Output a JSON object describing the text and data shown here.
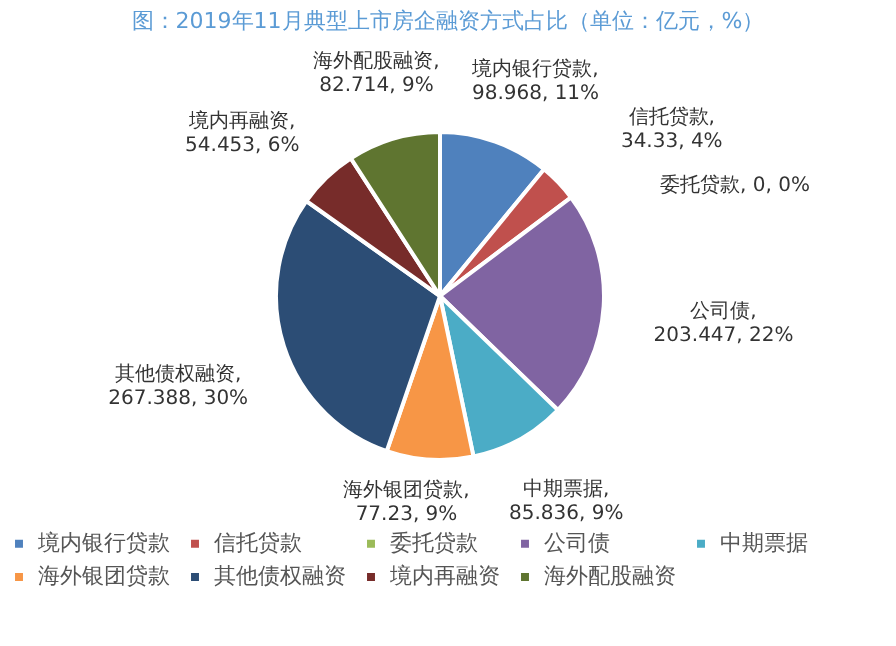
{
  "chart_data": {
    "type": "pie",
    "title": "图：2019年11月典型上市房企融资方式占比（单位：亿元，%）",
    "categories": [
      "境内银行贷款",
      "信托贷款",
      "委托贷款",
      "公司债",
      "中期票据",
      "海外银团贷款",
      "其他债权融资",
      "境内再融资",
      "海外配股融资"
    ],
    "values": [
      98.968,
      34.33,
      0,
      203.447,
      85.836,
      77.23,
      267.388,
      54.453,
      82.714
    ],
    "value_labels": [
      "境内银行贷款, 98.968, 11%",
      "信托贷款, 34.33, 4%",
      "委托贷款, 0, 0%",
      "公司债, 203.447, 22%",
      "中期票据, 85.836, 9%",
      "海外银团贷款, 77.23, 9%",
      "其他债权融资, 267.388, 30%",
      "境内再融资, 54.453, 6%",
      "海外配股融资, 82.714, 9%"
    ],
    "colors": [
      "#4f81bd",
      "#c0504d",
      "#9bbb59",
      "#8064a2",
      "#4bacc6",
      "#f79646",
      "#2c4d75",
      "#772c2a",
      "#5f7530"
    ],
    "legend": "bottom"
  }
}
